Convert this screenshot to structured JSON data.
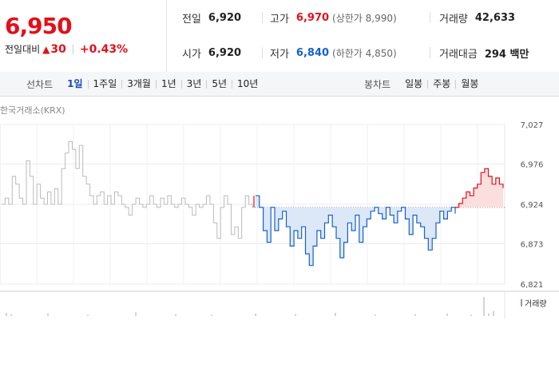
{
  "summary": {
    "price": "6,950",
    "change_label": "전일대비",
    "change_arrow": "▲",
    "change_value": "30",
    "change_pct": "+0.43%"
  },
  "stats": {
    "prev_label": "전일",
    "prev_value": "6,920",
    "high_label": "고가",
    "high_value": "6,970",
    "high_limit": "(상한가 8,990)",
    "volume_label": "거래량",
    "volume_value": "42,633",
    "open_label": "시가",
    "open_value": "6,920",
    "low_label": "저가",
    "low_value": "6,840",
    "low_limit": "(하한가 4,850)",
    "amount_label": "거래대금",
    "amount_value": "294 백만"
  },
  "toolbar": {
    "line_title": "선차트",
    "line_ranges": [
      "1일",
      "1주일",
      "3개월",
      "1년",
      "3년",
      "5년",
      "10년"
    ],
    "candle_title": "봉차트",
    "candle_ranges": [
      "일봉",
      "주봉",
      "월봉"
    ]
  },
  "chart_source": "한국거래소(KRX)",
  "volume_label": "거래량",
  "colors": {
    "up": "#e3101a",
    "down": "#1560d0",
    "prev_day": "#bbbbbb",
    "volume": "#9b8ec9"
  },
  "chart_data": {
    "type": "line",
    "ylim": [
      6821,
      7027
    ],
    "yticks": [
      "7,027",
      "6,976",
      "6,924",
      "6,873",
      "6,821"
    ],
    "ytick_values": [
      7027,
      6976,
      6924,
      6873,
      6821
    ],
    "baseline": 6920,
    "series": [
      {
        "values": [
          6924,
          6932,
          6924,
          6960,
          6950,
          6932,
          6924,
          6980,
          6960,
          6924,
          6950,
          6932,
          6924,
          6940,
          6924,
          6944,
          6924,
          6970,
          6990,
          7005,
          6995,
          6970,
          7000,
          6960,
          6950,
          6935,
          6924,
          6935,
          6940,
          6924,
          6935,
          6924,
          6940,
          6935,
          6924,
          6920,
          6910,
          6924,
          6932,
          6924,
          6920,
          6924,
          6935,
          6924,
          6920,
          6932,
          6924,
          6935,
          6924,
          6920,
          6924,
          6932,
          6924,
          6920,
          6910,
          6924,
          6920,
          6924,
          6935,
          6924,
          6900,
          6880,
          6920,
          6935,
          6924,
          6885,
          6895,
          6880,
          6920,
          6935,
          6924,
          6920
        ]
      },
      {
        "values": [
          6935,
          6920,
          6890,
          6875,
          6920,
          6890,
          6905,
          6915,
          6895,
          6870,
          6890,
          6880,
          6895,
          6860,
          6845,
          6870,
          6890,
          6880,
          6900,
          6910,
          6895,
          6880,
          6855,
          6875,
          6900,
          6890,
          6910,
          6875,
          6895,
          6905,
          6915,
          6920,
          6912,
          6905,
          6920,
          6910,
          6900,
          6915,
          6920,
          6905,
          6885,
          6910,
          6900,
          6895,
          6880,
          6865,
          6880,
          6900,
          6915,
          6905,
          6915,
          6920,
          6912
        ]
      },
      {
        "values": [
          6920,
          6925,
          6932,
          6940,
          6935,
          6945,
          6950,
          6965,
          6970,
          6960,
          6950,
          6958,
          6950,
          6945
        ]
      }
    ],
    "volume": [
      5,
      3,
      4,
      2,
      6,
      3,
      2,
      4,
      3,
      5,
      2,
      3,
      4,
      2,
      30,
      4,
      8
    ]
  }
}
